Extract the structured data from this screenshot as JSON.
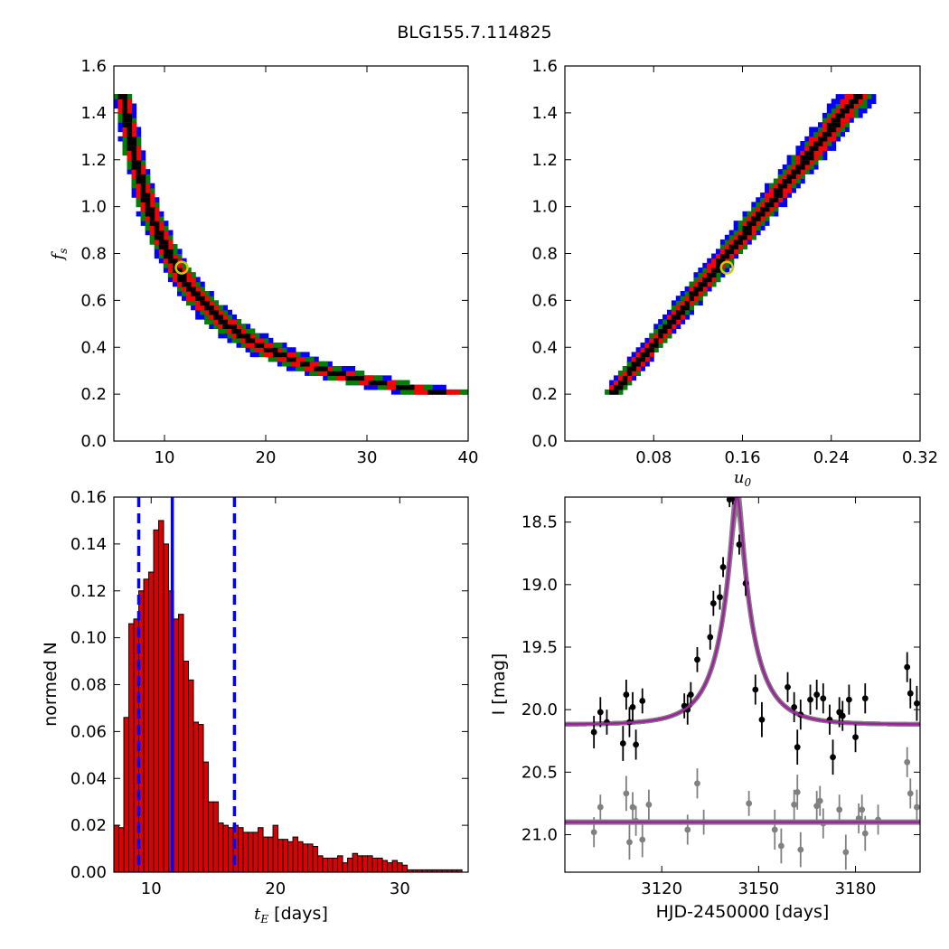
{
  "figure": {
    "title": "BLG155.7.114825",
    "colors": {
      "level_outer": "#0000ff",
      "level_mid": "#008000",
      "level_inner": "#ff0000",
      "level_core": "#000000",
      "best_fit_marker": "#cccc00",
      "histogram_fill": "#dd0000",
      "vline": "#0000ff",
      "model_curve": "#a020a0",
      "model_band": "#808080",
      "data_primary": "#000000",
      "data_secondary": "#808080"
    }
  },
  "chart_data": [
    {
      "id": "tE_vs_fs",
      "type": "heatmap",
      "title": "",
      "xlabel": "",
      "ylabel": "f_s",
      "ylabel_main": "f",
      "ylabel_sub": "s",
      "xlim": [
        5,
        40
      ],
      "ylim": [
        0.0,
        1.6
      ],
      "xticks": [
        10,
        20,
        30,
        40
      ],
      "yticks": [
        0.0,
        0.2,
        0.4,
        0.6,
        0.8,
        1.0,
        1.2,
        1.4,
        1.6
      ],
      "xtick_labels": [
        "10",
        "20",
        "30",
        "40"
      ],
      "ytick_labels": [
        "0.0",
        "0.2",
        "0.4",
        "0.6",
        "0.8",
        "1.0",
        "1.2",
        "1.4",
        "1.6"
      ],
      "curve_a": 8.36,
      "curve_fs_range": [
        0.2,
        1.47
      ],
      "level_halfwidths": [
        0.11,
        0.085,
        0.055,
        0.018
      ],
      "best_fit": {
        "x": 11.7,
        "y": 0.74
      }
    },
    {
      "id": "u0_vs_fs",
      "type": "heatmap",
      "title": "",
      "xlabel": "u_0",
      "xlabel_main": "u",
      "xlabel_sub": "0",
      "ylabel": "",
      "xlim": [
        0.0,
        0.32
      ],
      "ylim": [
        0.0,
        1.6
      ],
      "xticks": [
        0.08,
        0.16,
        0.24,
        0.32
      ],
      "yticks": [
        0.0,
        0.2,
        0.4,
        0.6,
        0.8,
        1.0,
        1.2,
        1.4,
        1.6
      ],
      "xtick_labels": [
        "0.08",
        "0.16",
        "0.24",
        "0.32"
      ],
      "ytick_labels": [
        "0.0",
        "0.2",
        "0.4",
        "0.6",
        "0.8",
        "1.0",
        "1.2",
        "1.4",
        "1.6"
      ],
      "line": {
        "fs_start": 0.2,
        "u0_start": 0.044,
        "fs_end": 1.47,
        "u0_end": 0.265
      },
      "level_halfwidths": [
        0.011,
        0.008,
        0.0055,
        0.0018
      ],
      "best_fit": {
        "x": 0.146,
        "y": 0.74
      }
    },
    {
      "id": "tE_histogram",
      "type": "bar",
      "title": "",
      "xlabel": "t_E  [days]",
      "xlabel_main": "t",
      "xlabel_sub": "E",
      "xlabel_unit": " [days]",
      "ylabel": "normed N",
      "xlim": [
        7,
        35.5
      ],
      "ylim": [
        0.0,
        0.16
      ],
      "xticks": [
        10,
        20,
        30
      ],
      "yticks": [
        0.0,
        0.02,
        0.04,
        0.06,
        0.08,
        0.1,
        0.12,
        0.14,
        0.16
      ],
      "xtick_labels": [
        "10",
        "20",
        "30"
      ],
      "ytick_labels": [
        "0.00",
        "0.02",
        "0.04",
        "0.06",
        "0.08",
        "0.10",
        "0.12",
        "0.14",
        "0.16"
      ],
      "bin_start": 7.0,
      "bin_width": 0.4,
      "values": [
        0.02,
        0.019,
        0.066,
        0.106,
        0.108,
        0.12,
        0.125,
        0.128,
        0.146,
        0.15,
        0.14,
        0.12,
        0.108,
        0.11,
        0.09,
        0.082,
        0.064,
        0.063,
        0.047,
        0.03,
        0.03,
        0.021,
        0.02,
        0.019,
        0.02,
        0.019,
        0.017,
        0.017,
        0.017,
        0.019,
        0.015,
        0.015,
        0.02,
        0.014,
        0.014,
        0.013,
        0.015,
        0.013,
        0.012,
        0.012,
        0.011,
        0.007,
        0.006,
        0.006,
        0.006,
        0.007,
        0.004,
        0.006,
        0.008,
        0.007,
        0.007,
        0.007,
        0.006,
        0.006,
        0.005,
        0.004,
        0.005,
        0.004,
        0.003,
        0.001,
        0.001,
        0.001,
        0.001,
        0.001,
        0.001,
        0.001,
        0.001,
        0.001,
        0.001,
        0.001,
        0.0
      ],
      "vlines": [
        {
          "x": 11.7,
          "style": "solid"
        },
        {
          "x": 9.0,
          "style": "dashed"
        },
        {
          "x": 16.7,
          "style": "dashed"
        }
      ]
    },
    {
      "id": "light_curve",
      "type": "scatter",
      "title": "",
      "xlabel": "HJD-2450000 [days]",
      "ylabel": "I [mag]",
      "xlim": [
        3090,
        3200
      ],
      "ylim": [
        21.3,
        18.3
      ],
      "yaxis_inverted": true,
      "xticks": [
        3120,
        3150,
        3180
      ],
      "yticks": [
        18.5,
        19.0,
        19.5,
        20.0,
        20.5,
        21.0
      ],
      "xtick_labels": [
        "3120",
        "3150",
        "3180"
      ],
      "ytick_labels": [
        "18.5",
        "19.0",
        "19.5",
        "20.0",
        "20.5",
        "21.0"
      ],
      "model": {
        "t0": 3143.3,
        "u0": 0.146,
        "tE": 11.7,
        "base_mag": 20.12,
        "fs": 0.74
      },
      "baseline_secondary": 20.9,
      "series": [
        {
          "role": "primary",
          "points": [
            [
              3099,
              20.18,
              0.13
            ],
            [
              3101,
              20.02,
              0.12
            ],
            [
              3103,
              20.1,
              0.1
            ],
            [
              3108,
              20.27,
              0.14
            ],
            [
              3109,
              19.88,
              0.12
            ],
            [
              3110,
              20.1,
              0.12
            ],
            [
              3111,
              19.98,
              0.12
            ],
            [
              3112,
              20.28,
              0.12
            ],
            [
              3114,
              19.93,
              0.1
            ],
            [
              3127,
              19.97,
              0.1
            ],
            [
              3128,
              20.0,
              0.12
            ],
            [
              3129,
              19.88,
              0.1
            ],
            [
              3131,
              19.6,
              0.1
            ],
            [
              3135,
              19.42,
              0.1
            ],
            [
              3136,
              19.15,
              0.1
            ],
            [
              3138,
              19.1,
              0.1
            ],
            [
              3139,
              18.86,
              0.08
            ],
            [
              3141,
              18.32,
              0.06
            ],
            [
              3142,
              18.31,
              0.05
            ],
            [
              3144,
              18.68,
              0.08
            ],
            [
              3146,
              18.99,
              0.1
            ],
            [
              3149,
              19.84,
              0.12
            ],
            [
              3151,
              20.08,
              0.14
            ],
            [
              3159,
              19.82,
              0.12
            ],
            [
              3161,
              19.98,
              0.12
            ],
            [
              3162,
              20.3,
              0.14
            ],
            [
              3163,
              20.04,
              0.12
            ],
            [
              3166,
              19.92,
              0.12
            ],
            [
              3168,
              19.88,
              0.12
            ],
            [
              3170,
              19.91,
              0.12
            ],
            [
              3172,
              20.08,
              0.12
            ],
            [
              3173,
              20.38,
              0.14
            ],
            [
              3175,
              20.02,
              0.12
            ],
            [
              3176,
              20.05,
              0.12
            ],
            [
              3178,
              19.92,
              0.12
            ],
            [
              3180,
              20.22,
              0.12
            ],
            [
              3183,
              19.91,
              0.12
            ],
            [
              3196,
              19.66,
              0.12
            ],
            [
              3197,
              19.87,
              0.12
            ],
            [
              3199,
              19.95,
              0.14
            ]
          ]
        },
        {
          "role": "secondary",
          "points": [
            [
              3099,
              20.98,
              0.12
            ],
            [
              3101,
              20.78,
              0.1
            ],
            [
              3109,
              20.67,
              0.14
            ],
            [
              3110,
              21.06,
              0.14
            ],
            [
              3111,
              20.78,
              0.12
            ],
            [
              3112,
              20.89,
              0.12
            ],
            [
              3114,
              21.04,
              0.14
            ],
            [
              3116,
              20.76,
              0.12
            ],
            [
              3128,
              20.96,
              0.12
            ],
            [
              3131,
              20.59,
              0.12
            ],
            [
              3133,
              20.9,
              0.1
            ],
            [
              3147,
              20.75,
              0.1
            ],
            [
              3155,
              20.96,
              0.16
            ],
            [
              3157,
              21.09,
              0.14
            ],
            [
              3161,
              20.76,
              0.12
            ],
            [
              3162,
              20.66,
              0.14
            ],
            [
              3163,
              21.12,
              0.14
            ],
            [
              3168,
              20.77,
              0.12
            ],
            [
              3169,
              20.73,
              0.12
            ],
            [
              3170,
              20.91,
              0.12
            ],
            [
              3175,
              20.8,
              0.12
            ],
            [
              3177,
              21.14,
              0.14
            ],
            [
              3181,
              20.87,
              0.12
            ],
            [
              3182,
              20.8,
              0.12
            ],
            [
              3183,
              20.99,
              0.14
            ],
            [
              3187,
              20.88,
              0.12
            ],
            [
              3196,
              20.42,
              0.12
            ],
            [
              3197,
              20.67,
              0.12
            ],
            [
              3199,
              20.78,
              0.14
            ]
          ]
        }
      ]
    }
  ]
}
